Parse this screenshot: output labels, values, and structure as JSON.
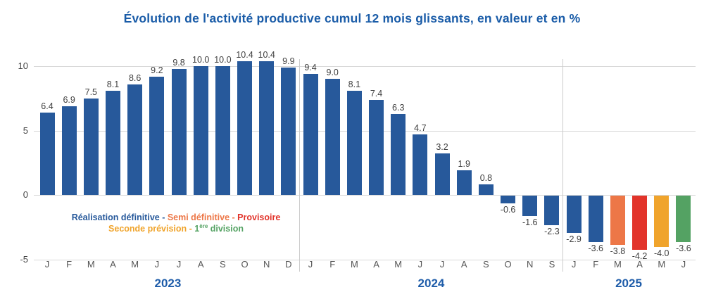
{
  "colors": {
    "definitive": "#27599B",
    "semi_definitive": "#ED7747",
    "provisoire": "#E2342B",
    "seconde_prevision": "#F0A42C",
    "premiere_division": "#54A263",
    "title_blue": "#1A5CA8",
    "year_blue": "#1E5CA9",
    "gridline": "#D9D9D9"
  },
  "legend": {
    "separator": " - ",
    "rows": [
      [
        {
          "label": "Réalisation définitive",
          "color_key": "definitive"
        },
        {
          "label": "Semi définitive",
          "color_key": "semi_definitive"
        },
        {
          "label": "Provisoire",
          "color_key": "provisoire"
        }
      ],
      [
        {
          "label": "Seconde prévision",
          "color_key": "seconde_prevision"
        },
        {
          "label": "1ère division",
          "parts": [
            {
              "text": "1"
            },
            {
              "text": "ère",
              "sup": true
            },
            {
              "text": " division"
            }
          ],
          "color_key": "premiere_division"
        }
      ]
    ]
  },
  "chart_data": {
    "type": "bar",
    "title": "Évolution de l'activité productive cumul 12 mois glissants, en valeur et en %",
    "xlabel": "",
    "ylabel": "",
    "ylim": [
      -5,
      10.4
    ],
    "yticks": [
      10,
      5,
      0,
      -5
    ],
    "grid": "horizontal",
    "value_format_decimals": 1,
    "groups": [
      {
        "year": "2023",
        "months": [
          "J",
          "F",
          "M",
          "A",
          "M",
          "J",
          "J",
          "A",
          "S",
          "O",
          "N",
          "D"
        ],
        "values": [
          6.4,
          6.9,
          7.5,
          8.1,
          8.6,
          9.2,
          9.8,
          10.0,
          10.0,
          10.4,
          10.4,
          9.9
        ],
        "color_keys": [
          "definitive",
          "definitive",
          "definitive",
          "definitive",
          "definitive",
          "definitive",
          "definitive",
          "definitive",
          "definitive",
          "definitive",
          "definitive",
          "definitive"
        ]
      },
      {
        "year": "2024",
        "months": [
          "J",
          "F",
          "M",
          "A",
          "M",
          "J",
          "J",
          "A",
          "S",
          "O",
          "N",
          "S"
        ],
        "values": [
          9.4,
          9.0,
          8.1,
          7.4,
          6.3,
          4.7,
          3.2,
          1.9,
          0.8,
          -0.6,
          -1.6,
          -2.3
        ],
        "color_keys": [
          "definitive",
          "definitive",
          "definitive",
          "definitive",
          "definitive",
          "definitive",
          "definitive",
          "definitive",
          "definitive",
          "definitive",
          "definitive",
          "definitive"
        ]
      },
      {
        "year": "2025",
        "months": [
          "J",
          "F",
          "M",
          "A",
          "M",
          "J"
        ],
        "values": [
          -2.9,
          -3.6,
          -3.8,
          -4.2,
          -4.0,
          -3.6
        ],
        "color_keys": [
          "definitive",
          "definitive",
          "semi_definitive",
          "provisoire",
          "seconde_prevision",
          "premiere_division"
        ]
      }
    ]
  }
}
